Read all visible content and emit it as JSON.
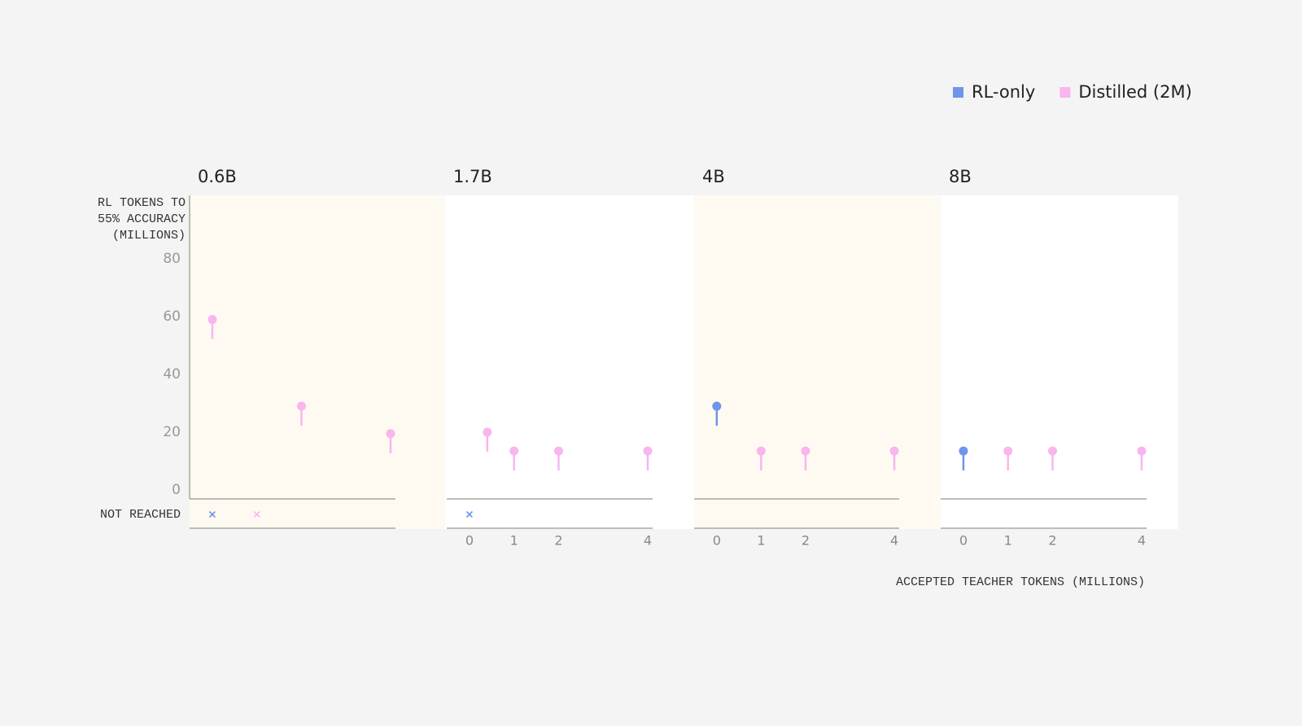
{
  "chart_data": {
    "type": "lollipop",
    "legend": [
      {
        "name": "RL-only",
        "color": "#6f95e8"
      },
      {
        "name": "Distilled (2M)",
        "color": "#f9b5ee"
      }
    ],
    "y_label": "RL TOKENS TO 55% ACCURACY (MILLIONS)",
    "x_label": "ACCEPTED TEACHER TOKENS (MILLIONS)",
    "not_reached_label": "NOT REACHED",
    "ylim": [
      0,
      100
    ],
    "yticks": [
      0,
      20,
      40,
      60,
      80
    ],
    "panels": [
      {
        "title": "0.6B",
        "xlim": [
          -0.51,
          4.11
        ],
        "xticks": [],
        "series": [
          {
            "x": [
              0
            ],
            "values": [
              null
            ]
          },
          {
            "x": [
              0,
              1,
              2,
              4
            ],
            "values": [
              59,
              null,
              29,
              19.5
            ]
          }
        ]
      },
      {
        "title": "1.7B",
        "xlim": [
          -0.51,
          4.11
        ],
        "xticks": [
          0,
          1,
          2,
          4
        ],
        "series": [
          {
            "x": [
              0
            ],
            "values": [
              null
            ]
          },
          {
            "x": [
              0.4,
              1,
              2,
              4
            ],
            "values": [
              20,
              13.5,
              13.5,
              13.5
            ]
          }
        ]
      },
      {
        "title": "4B",
        "xlim": [
          -0.51,
          4.11
        ],
        "xticks": [
          0,
          1,
          2,
          4
        ],
        "series": [
          {
            "x": [
              0
            ],
            "values": [
              29
            ]
          },
          {
            "x": [
              1,
              2,
              4
            ],
            "values": [
              13.5,
              13.5,
              13.5
            ]
          }
        ]
      },
      {
        "title": "8B",
        "xlim": [
          -0.51,
          4.11
        ],
        "xticks": [
          0,
          1,
          2,
          4
        ],
        "series": [
          {
            "x": [
              0
            ],
            "values": [
              13.5
            ]
          },
          {
            "x": [
              1,
              2,
              4
            ],
            "values": [
              13.5,
              13.5,
              13.5
            ]
          }
        ]
      }
    ]
  }
}
